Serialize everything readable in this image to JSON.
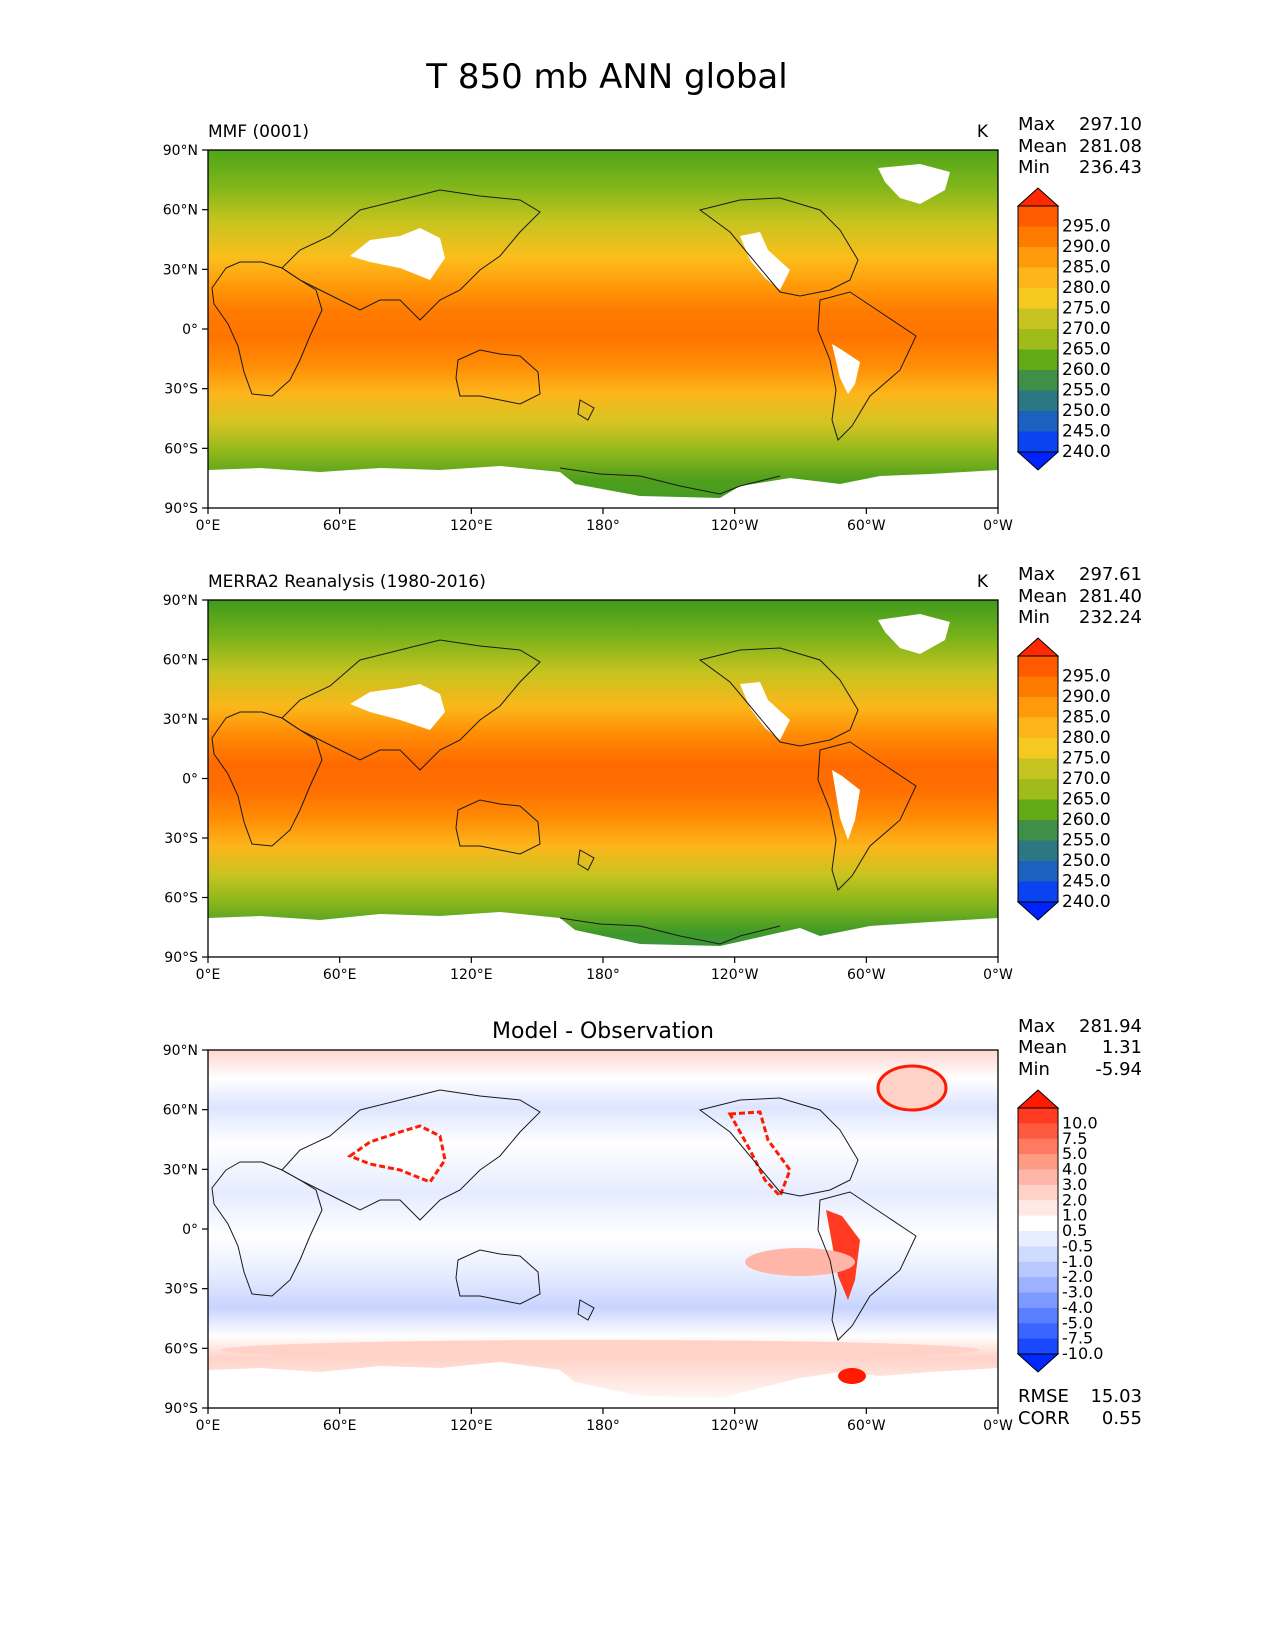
{
  "figure": {
    "title": "T 850 mb ANN global"
  },
  "chart_data": [
    {
      "type": "heatmap",
      "title": "MMF (0001)",
      "units": "K",
      "stats": {
        "max_label": "Max",
        "max": "297.10",
        "mean_label": "Mean",
        "mean": "281.08",
        "min_label": "Min",
        "min": "236.43"
      },
      "colorbar_ticks": [
        "295.0",
        "290.0",
        "285.0",
        "280.0",
        "275.0",
        "270.0",
        "265.0",
        "260.0",
        "255.0",
        "250.0",
        "245.0",
        "240.0"
      ],
      "colorbar_colors": [
        "#ff2a00",
        "#ff5a00",
        "#ff7b00",
        "#ff9a0a",
        "#fdb51b",
        "#f6c921",
        "#c7c320",
        "#9fbc1b",
        "#63ab16",
        "#3f8f48",
        "#2b7784",
        "#1b62c0",
        "#0a43f0",
        "#0022ff"
      ],
      "x_ticks": [
        "0°E",
        "60°E",
        "120°E",
        "180°",
        "120°W",
        "60°W",
        "0°W"
      ],
      "y_ticks": [
        "90°N",
        "60°N",
        "30°N",
        "0°",
        "30°S",
        "60°S",
        "90°S"
      ],
      "xlim": [
        0,
        360
      ],
      "ylim": [
        -90,
        90
      ]
    },
    {
      "type": "heatmap",
      "title": "MERRA2 Reanalysis (1980-2016)",
      "units": "K",
      "stats": {
        "max_label": "Max",
        "max": "297.61",
        "mean_label": "Mean",
        "mean": "281.40",
        "min_label": "Min",
        "min": "232.24"
      },
      "colorbar_ticks": [
        "295.0",
        "290.0",
        "285.0",
        "280.0",
        "275.0",
        "270.0",
        "265.0",
        "260.0",
        "255.0",
        "250.0",
        "245.0",
        "240.0"
      ],
      "colorbar_colors": [
        "#ff2a00",
        "#ff5a00",
        "#ff7b00",
        "#ff9a0a",
        "#fdb51b",
        "#f6c921",
        "#c7c320",
        "#9fbc1b",
        "#63ab16",
        "#3f8f48",
        "#2b7784",
        "#1b62c0",
        "#0a43f0",
        "#0022ff"
      ],
      "x_ticks": [
        "0°E",
        "60°E",
        "120°E",
        "180°",
        "120°W",
        "60°W",
        "0°W"
      ],
      "y_ticks": [
        "90°N",
        "60°N",
        "30°N",
        "0°",
        "30°S",
        "60°S",
        "90°S"
      ],
      "xlim": [
        0,
        360
      ],
      "ylim": [
        -90,
        90
      ]
    },
    {
      "type": "heatmap",
      "title": "Model - Observation",
      "stats": {
        "max_label": "Max",
        "max": "281.94",
        "mean_label": "Mean",
        "mean": "1.31",
        "min_label": "Min",
        "min": "-5.94"
      },
      "colorbar_ticks": [
        "10.0",
        "7.5",
        "5.0",
        "4.0",
        "3.0",
        "2.0",
        "1.0",
        "0.5",
        "-0.5",
        "-1.0",
        "-2.0",
        "-3.0",
        "-4.0",
        "-5.0",
        "-7.5",
        "-10.0"
      ],
      "colorbar_colors": [
        "#ff1a00",
        "#ff3a20",
        "#ff5a40",
        "#ff7a60",
        "#ff9a85",
        "#ffb6a8",
        "#ffd2c8",
        "#ffe9e4",
        "#ffffff",
        "#e8eeff",
        "#d0dcff",
        "#b8c8ff",
        "#9cb2ff",
        "#7c9aff",
        "#5a80ff",
        "#3a66ff",
        "#1a48ff",
        "#0028ff"
      ],
      "x_ticks": [
        "0°E",
        "60°E",
        "120°E",
        "180°",
        "120°W",
        "60°W",
        "0°W"
      ],
      "y_ticks": [
        "90°N",
        "60°N",
        "30°N",
        "0°",
        "30°S",
        "60°S",
        "90°S"
      ],
      "xlim": [
        0,
        360
      ],
      "ylim": [
        -90,
        90
      ],
      "metrics": {
        "rmse_label": "RMSE",
        "rmse": "15.03",
        "corr_label": "CORR",
        "corr": "0.55"
      }
    }
  ]
}
